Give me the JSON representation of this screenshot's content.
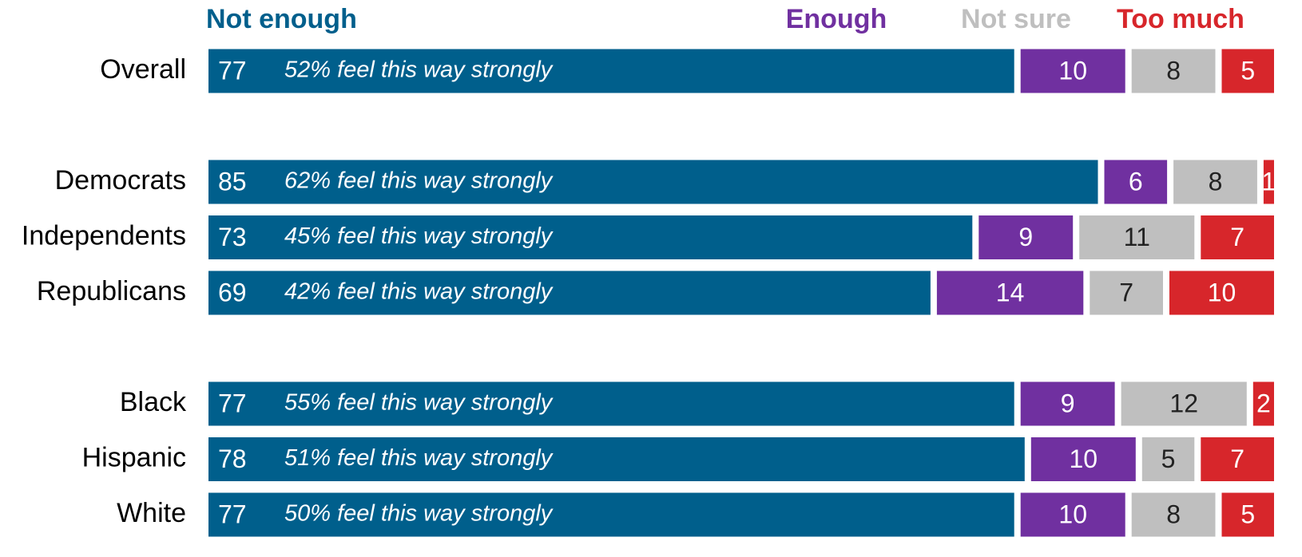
{
  "chart_data": {
    "type": "stacked-bar-horizontal",
    "categories": [
      "Overall",
      "Democrats",
      "Independents",
      "Republicans",
      "Black",
      "Hispanic",
      "White"
    ],
    "annotations": [
      "52% feel this way strongly",
      "62% feel this way strongly",
      "45% feel this way strongly",
      "42% feel this way strongly",
      "55% feel this way strongly",
      "51% feel this way strongly",
      "50% feel this way strongly"
    ],
    "series": [
      {
        "name": "Not enough",
        "color": "#005f8c",
        "values": [
          77,
          85,
          73,
          69,
          77,
          78,
          77
        ]
      },
      {
        "name": "Enough",
        "color": "#7030a0",
        "values": [
          10,
          6,
          9,
          14,
          9,
          10,
          10
        ]
      },
      {
        "name": "Not sure",
        "color": "#bfbfbf",
        "values": [
          8,
          8,
          11,
          7,
          12,
          5,
          8
        ]
      },
      {
        "name": "Too much",
        "color": "#d7262b",
        "values": [
          5,
          1,
          7,
          10,
          2,
          7,
          5
        ]
      }
    ],
    "xlim": [
      0,
      100
    ]
  }
}
